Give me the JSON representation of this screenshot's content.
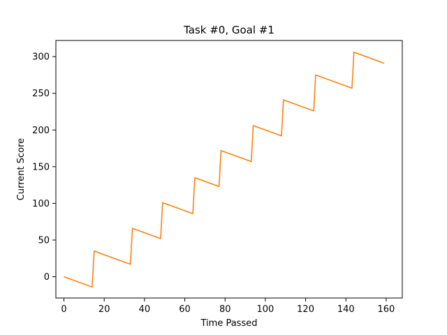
{
  "chart_data": {
    "type": "line",
    "title": "Task #0, Goal #1",
    "xlabel": "Time Passed",
    "ylabel": "Current Score",
    "xlim": [
      -4,
      168
    ],
    "ylim": [
      -29,
      322
    ],
    "xticks": [
      0,
      20,
      40,
      60,
      80,
      100,
      120,
      140,
      160
    ],
    "yticks": [
      0,
      50,
      100,
      150,
      200,
      250,
      300
    ],
    "grid": false,
    "legend": "none",
    "series": [
      {
        "color": "#ff7f0e",
        "x": [
          0,
          14,
          15,
          33,
          34,
          48,
          49,
          64,
          65,
          77,
          78,
          93,
          94,
          108,
          109,
          124,
          125,
          143,
          144,
          159
        ],
        "y": [
          0,
          -14,
          35,
          17,
          66,
          52,
          101,
          86,
          135,
          123,
          172,
          157,
          206,
          192,
          241,
          226,
          275,
          257,
          306,
          291
        ]
      }
    ]
  }
}
